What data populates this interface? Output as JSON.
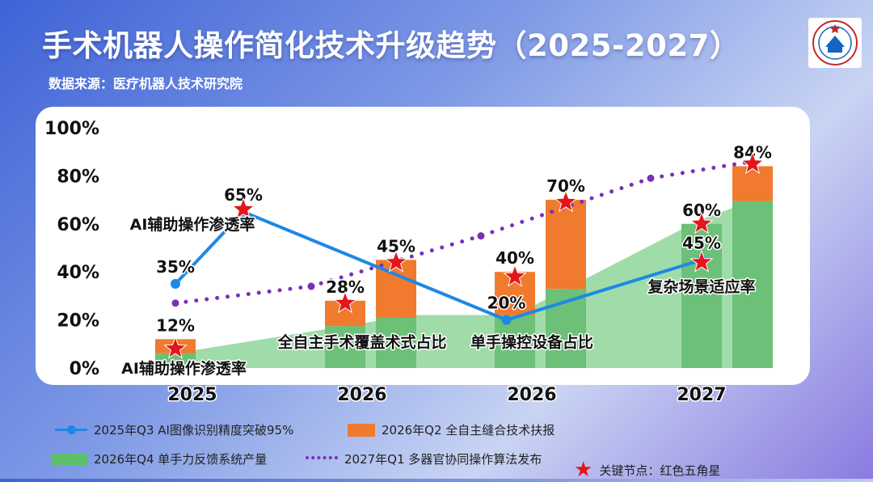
{
  "title": "手术机器人操作简化技术升级趋势（2025-2027）",
  "subtitle": "数据来源：医疗机器人技术研究院",
  "legend": {
    "line": "2025年Q3 AI图像识别精度突破95%",
    "bar": "2026年Q2 全自主缝合技术扶报",
    "area": "2026年Q4 单手力反馈系统产量",
    "dotted": "2027年Q1 多器官协同操作算法发布",
    "star": "关键节点：红色五角星"
  },
  "colors": {
    "bar": "#f07a2e",
    "bar_base": "#6cc078",
    "area": "#8fd69a",
    "line": "#1e88e5",
    "dotted": "#7b2fb8",
    "star": "#e3161b"
  },
  "chart_data": {
    "type": "bar",
    "ylim": [
      0,
      100
    ],
    "y_ticks": [
      "0%",
      "20%",
      "40%",
      "60%",
      "80%",
      "100%"
    ],
    "x_labels": [
      {
        "text": "2025",
        "x": 0.0
      },
      {
        "text": "2026",
        "x": 1.0
      },
      {
        "text": "2026",
        "x": 2.0
      },
      {
        "text": "2027",
        "x": 3.0
      }
    ],
    "bars": [
      {
        "x": -0.1,
        "value": 12,
        "label": "12%"
      },
      {
        "x": 0.9,
        "value": 28,
        "label": "28%"
      },
      {
        "x": 1.2,
        "value": 45,
        "label": "45%"
      },
      {
        "x": 1.9,
        "value": 40,
        "label": "40%"
      },
      {
        "x": 2.2,
        "value": 70,
        "label": "70%"
      },
      {
        "x": 3.0,
        "value": 60,
        "label": "60%"
      },
      {
        "x": 3.3,
        "value": 84,
        "label": "84%"
      }
    ],
    "area": {
      "x": [
        -0.2,
        1.3,
        1.9,
        3.0,
        3.4
      ],
      "values": [
        5,
        22,
        22,
        62,
        72
      ]
    },
    "line_series": [
      {
        "x": [
          -0.1,
          0.3
        ],
        "values": [
          35,
          65
        ],
        "labels": [
          "35%",
          "65%"
        ]
      },
      {
        "x": 0.3,
        "values": 65
      },
      {
        "x": [
          0.3,
          1.85,
          3.0
        ],
        "values": [
          65,
          20,
          45
        ],
        "labels": [
          "",
          "20%",
          "45%"
        ]
      }
    ],
    "dotted_series": {
      "x": [
        -0.1,
        0.7,
        1.7,
        2.7,
        3.3
      ],
      "values": [
        27,
        34,
        55,
        79,
        86
      ]
    },
    "stars": [
      {
        "x": -0.1,
        "value": 8
      },
      {
        "x": 0.3,
        "value": 66
      },
      {
        "x": 0.9,
        "value": 27
      },
      {
        "x": 1.2,
        "value": 44
      },
      {
        "x": 1.9,
        "value": 38
      },
      {
        "x": 2.2,
        "value": 69
      },
      {
        "x": 3.0,
        "value": 60
      },
      {
        "x": 3.0,
        "value": 44
      },
      {
        "x": 3.3,
        "value": 85
      }
    ],
    "annotations": [
      {
        "text": "AI辅助操作渗透率",
        "x": 0.0,
        "value": 60
      },
      {
        "text": "AI辅助操作渗透率",
        "x": -0.05,
        "value": 0
      },
      {
        "text": "全自主手术覆盖术式占比",
        "x": 1.0,
        "value": 11
      },
      {
        "text": "单手操控设备占比",
        "x": 2.0,
        "value": 11
      },
      {
        "text": "复杂场景适应率",
        "x": 3.0,
        "value": 34
      }
    ]
  }
}
